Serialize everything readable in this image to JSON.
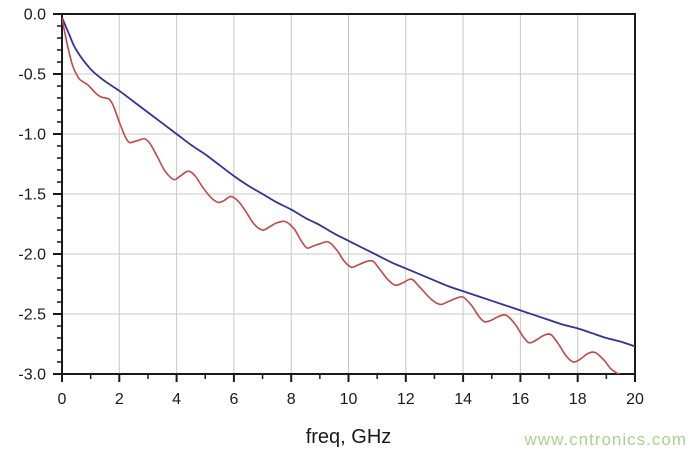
{
  "page": {
    "background": "#ffffff"
  },
  "watermark": {
    "text": "www.cntronics.com",
    "color": "#a8d389"
  },
  "chart_data": {
    "type": "line",
    "title": "",
    "xlabel": "freq, GHz",
    "ylabel": "",
    "xlim": [
      0,
      20
    ],
    "ylim": [
      -3.0,
      0.0
    ],
    "x_major_ticks": [
      0,
      2,
      4,
      6,
      8,
      10,
      12,
      14,
      16,
      18,
      20
    ],
    "x_tick_labels": [
      "0",
      "2",
      "4",
      "6",
      "8",
      "10",
      "12",
      "14",
      "16",
      "18",
      "20"
    ],
    "x_minor_step": 1,
    "y_major_ticks": [
      0,
      -0.5,
      -1.0,
      -1.5,
      -2.0,
      -2.5,
      -3.0
    ],
    "y_tick_labels": [
      "0.0",
      "-0.5",
      "-1.0",
      "-1.5",
      "-2.0",
      "-2.5",
      "-3.0"
    ],
    "y_minor_step": 0.1,
    "grid": true,
    "legend": "none",
    "grid_color": "#c8c8c8",
    "axis_color": "#1a1a1a",
    "series": [
      {
        "name": "blue-smooth-curve",
        "color": "#32329b",
        "width": 1.8,
        "points": [
          [
            0,
            -0.03
          ],
          [
            0.25,
            -0.17
          ],
          [
            0.5,
            -0.3
          ],
          [
            1,
            -0.46
          ],
          [
            1.5,
            -0.56
          ],
          [
            2,
            -0.64
          ],
          [
            2.5,
            -0.73
          ],
          [
            3,
            -0.82
          ],
          [
            3.5,
            -0.91
          ],
          [
            4,
            -1.0
          ],
          [
            4.5,
            -1.09
          ],
          [
            5,
            -1.17
          ],
          [
            5.5,
            -1.26
          ],
          [
            6,
            -1.35
          ],
          [
            6.5,
            -1.43
          ],
          [
            7,
            -1.5
          ],
          [
            7.5,
            -1.57
          ],
          [
            8,
            -1.63
          ],
          [
            8.5,
            -1.7
          ],
          [
            9,
            -1.76
          ],
          [
            9.5,
            -1.83
          ],
          [
            10,
            -1.89
          ],
          [
            10.5,
            -1.95
          ],
          [
            11,
            -2.01
          ],
          [
            11.5,
            -2.07
          ],
          [
            12,
            -2.12
          ],
          [
            12.5,
            -2.17
          ],
          [
            13,
            -2.22
          ],
          [
            13.5,
            -2.27
          ],
          [
            14,
            -2.31
          ],
          [
            14.5,
            -2.35
          ],
          [
            15,
            -2.39
          ],
          [
            15.5,
            -2.43
          ],
          [
            16,
            -2.47
          ],
          [
            16.5,
            -2.51
          ],
          [
            17,
            -2.55
          ],
          [
            17.5,
            -2.59
          ],
          [
            18,
            -2.62
          ],
          [
            18.5,
            -2.66
          ],
          [
            19,
            -2.7
          ],
          [
            19.5,
            -2.73
          ],
          [
            20,
            -2.77
          ]
        ]
      },
      {
        "name": "red-ripple-curve",
        "color": "#c24848",
        "width": 1.6,
        "points": [
          [
            0,
            -0.04
          ],
          [
            0.1,
            -0.16
          ],
          [
            0.2,
            -0.27
          ],
          [
            0.3,
            -0.37
          ],
          [
            0.4,
            -0.45
          ],
          [
            0.5,
            -0.5
          ],
          [
            0.6,
            -0.54
          ],
          [
            0.7,
            -0.56
          ],
          [
            0.8,
            -0.575
          ],
          [
            0.9,
            -0.59
          ],
          [
            1.0,
            -0.615
          ],
          [
            1.1,
            -0.64
          ],
          [
            1.2,
            -0.665
          ],
          [
            1.35,
            -0.69
          ],
          [
            1.5,
            -0.7
          ],
          [
            1.65,
            -0.71
          ],
          [
            1.8,
            -0.77
          ],
          [
            2.0,
            -0.9
          ],
          [
            2.2,
            -1.02
          ],
          [
            2.35,
            -1.07
          ],
          [
            2.5,
            -1.065
          ],
          [
            2.7,
            -1.05
          ],
          [
            2.9,
            -1.04
          ],
          [
            3.1,
            -1.09
          ],
          [
            3.35,
            -1.2
          ],
          [
            3.6,
            -1.31
          ],
          [
            3.9,
            -1.38
          ],
          [
            4.1,
            -1.355
          ],
          [
            4.4,
            -1.31
          ],
          [
            4.65,
            -1.35
          ],
          [
            4.9,
            -1.44
          ],
          [
            5.2,
            -1.53
          ],
          [
            5.45,
            -1.57
          ],
          [
            5.65,
            -1.555
          ],
          [
            5.9,
            -1.52
          ],
          [
            6.15,
            -1.56
          ],
          [
            6.4,
            -1.64
          ],
          [
            6.7,
            -1.75
          ],
          [
            7.0,
            -1.8
          ],
          [
            7.2,
            -1.78
          ],
          [
            7.5,
            -1.74
          ],
          [
            7.8,
            -1.73
          ],
          [
            8.1,
            -1.79
          ],
          [
            8.35,
            -1.89
          ],
          [
            8.55,
            -1.95
          ],
          [
            8.75,
            -1.935
          ],
          [
            9.0,
            -1.915
          ],
          [
            9.3,
            -1.9
          ],
          [
            9.6,
            -1.97
          ],
          [
            9.85,
            -2.06
          ],
          [
            10.1,
            -2.11
          ],
          [
            10.3,
            -2.095
          ],
          [
            10.6,
            -2.065
          ],
          [
            10.85,
            -2.06
          ],
          [
            11.1,
            -2.13
          ],
          [
            11.4,
            -2.22
          ],
          [
            11.65,
            -2.26
          ],
          [
            11.9,
            -2.24
          ],
          [
            12.2,
            -2.21
          ],
          [
            12.5,
            -2.28
          ],
          [
            12.9,
            -2.38
          ],
          [
            13.2,
            -2.42
          ],
          [
            13.45,
            -2.4
          ],
          [
            13.75,
            -2.37
          ],
          [
            14.0,
            -2.36
          ],
          [
            14.3,
            -2.43
          ],
          [
            14.55,
            -2.52
          ],
          [
            14.75,
            -2.565
          ],
          [
            15.0,
            -2.55
          ],
          [
            15.25,
            -2.52
          ],
          [
            15.5,
            -2.51
          ],
          [
            15.8,
            -2.58
          ],
          [
            16.1,
            -2.69
          ],
          [
            16.3,
            -2.74
          ],
          [
            16.5,
            -2.725
          ],
          [
            16.8,
            -2.68
          ],
          [
            17.05,
            -2.67
          ],
          [
            17.3,
            -2.74
          ],
          [
            17.6,
            -2.85
          ],
          [
            17.85,
            -2.9
          ],
          [
            18.1,
            -2.875
          ],
          [
            18.35,
            -2.83
          ],
          [
            18.6,
            -2.82
          ],
          [
            18.9,
            -2.88
          ],
          [
            19.15,
            -2.955
          ],
          [
            19.35,
            -2.99
          ],
          [
            19.45,
            -3.0
          ]
        ]
      }
    ]
  }
}
